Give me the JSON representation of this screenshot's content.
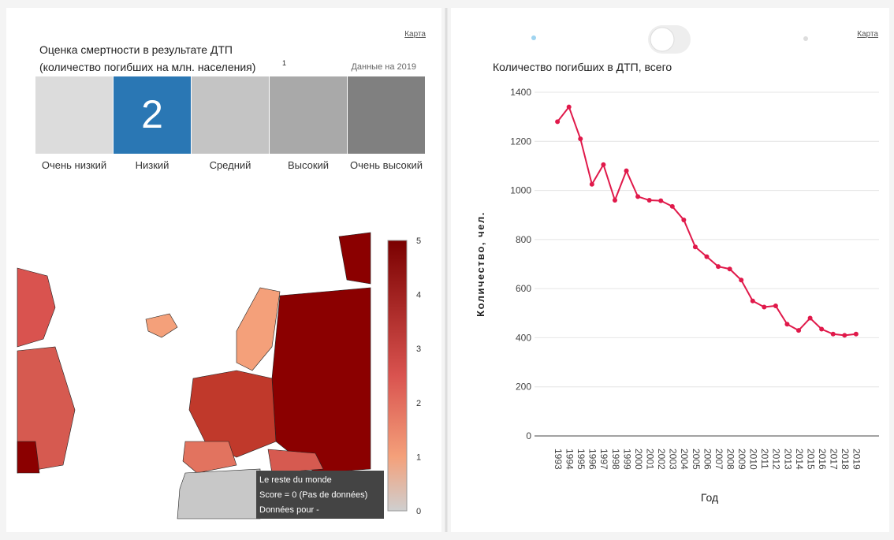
{
  "left_panel": {
    "map_link": "Карта",
    "title": "Оценка смертности в результате ДТП",
    "subtitle": "(количество погибших на млн. населения)",
    "footnote": "1",
    "data_year": "Данные на 2019",
    "score": 2,
    "levels": [
      "Очень низкий",
      "Низкий",
      "Средний",
      "Высокий",
      "Очень высокий"
    ],
    "colorbar_ticks": [
      0,
      1,
      2,
      3,
      4,
      5
    ],
    "tooltip": [
      "Le reste du monde",
      "Score = 0 (Pas de données)",
      "Données pour -"
    ]
  },
  "right_panel": {
    "map_link": "Карта"
  },
  "chart_data": {
    "type": "line",
    "title": "Количество погибших в ДТП, всего",
    "x_label": "Год",
    "y_label": "Количество, чел.",
    "x": [
      1993,
      1994,
      1995,
      1996,
      1997,
      1998,
      1999,
      2000,
      2001,
      2002,
      2003,
      2004,
      2005,
      2006,
      2007,
      2008,
      2009,
      2010,
      2011,
      2012,
      2013,
      2014,
      2015,
      2016,
      2017,
      2018,
      2019
    ],
    "series": [
      {
        "name": "Количество погибших",
        "color": "#e0194a",
        "values": [
          1280,
          1340,
          1210,
          1025,
          1105,
          960,
          1080,
          975,
          960,
          958,
          935,
          880,
          770,
          730,
          690,
          680,
          635,
          550,
          525,
          530,
          455,
          430,
          480,
          435,
          415,
          410,
          415
        ]
      }
    ],
    "xlim": [
      1991,
      2021
    ],
    "ylim": [
      0,
      1400
    ],
    "yticks": [
      0,
      200,
      400,
      600,
      800,
      1000,
      1200,
      1400
    ],
    "grid": true
  }
}
